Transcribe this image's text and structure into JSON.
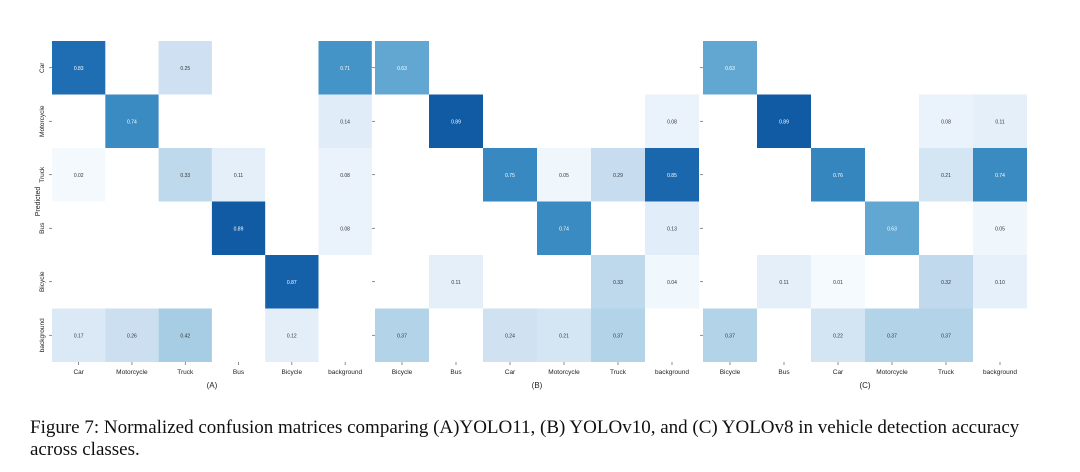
{
  "figure": {
    "caption": "Figure 7: Normalized confusion matrices comparing (A)YOLO11, (B) YOLOv10, and (C) YOLOv8 in vehicle detection accuracy across classes.",
    "shared_ylabel": "Predicted",
    "row_labels": [
      "Car",
      "Motorcycle",
      "Truck",
      "Bus",
      "Bicycle",
      "background"
    ]
  },
  "chart_data": [
    {
      "type": "heatmap",
      "panel_label": "(A)",
      "x_labels": [
        "Car",
        "Motorcycle",
        "Truck",
        "Bus",
        "Bicycle",
        "background"
      ],
      "y_labels": [
        "Car",
        "Motorcycle",
        "Truck",
        "Bus",
        "Bicycle",
        "background"
      ],
      "ylabel": "Predicted",
      "values": [
        [
          0.83,
          null,
          0.25,
          null,
          null,
          0.71
        ],
        [
          null,
          0.74,
          null,
          null,
          null,
          0.14
        ],
        [
          0.02,
          null,
          0.33,
          0.11,
          null,
          0.08
        ],
        [
          null,
          null,
          null,
          0.89,
          null,
          0.08
        ],
        [
          null,
          null,
          null,
          null,
          0.87,
          null
        ],
        [
          0.17,
          0.26,
          0.42,
          null,
          0.12,
          null
        ]
      ]
    },
    {
      "type": "heatmap",
      "panel_label": "(B)",
      "x_labels": [
        "Bicycle",
        "Bus",
        "Car",
        "Motorcycle",
        "Truck",
        "background"
      ],
      "y_labels": [
        "Car",
        "Motorcycle",
        "Truck",
        "Bus",
        "Bicycle",
        "background"
      ],
      "values": [
        [
          0.63,
          null,
          null,
          null,
          null,
          null
        ],
        [
          null,
          0.89,
          null,
          null,
          null,
          0.08
        ],
        [
          null,
          null,
          0.75,
          0.05,
          0.29,
          0.85
        ],
        [
          null,
          null,
          null,
          0.74,
          null,
          0.13
        ],
        [
          null,
          0.11,
          null,
          null,
          0.33,
          0.04
        ],
        [
          0.37,
          null,
          0.24,
          0.21,
          0.37,
          null
        ]
      ]
    },
    {
      "type": "heatmap",
      "panel_label": "(C)",
      "x_labels": [
        "Bicycle",
        "Bus",
        "Car",
        "Motorcycle",
        "Truck",
        "background"
      ],
      "y_labels": [
        "Car",
        "Motorcycle",
        "Truck",
        "Bus",
        "Bicycle",
        "background"
      ],
      "values": [
        [
          0.63,
          null,
          null,
          null,
          null,
          null
        ],
        [
          null,
          0.89,
          null,
          null,
          0.08,
          0.11
        ],
        [
          null,
          null,
          0.76,
          null,
          0.21,
          0.74
        ],
        [
          null,
          null,
          null,
          0.63,
          null,
          0.05
        ],
        [
          null,
          0.11,
          0.01,
          null,
          0.32,
          0.1
        ],
        [
          0.37,
          null,
          0.22,
          0.37,
          0.37,
          null
        ]
      ]
    }
  ]
}
